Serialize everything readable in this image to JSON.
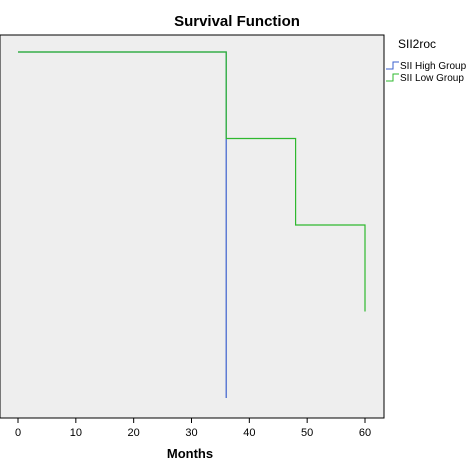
{
  "chart_data": {
    "type": "line",
    "title": "Survival Function",
    "xlabel": "Months",
    "ylabel": "",
    "xlim": [
      -1,
      62
    ],
    "ylim": [
      0,
      1.05
    ],
    "xticks": [
      0,
      10,
      20,
      30,
      40,
      50,
      60
    ],
    "grid": false,
    "legend": {
      "title": "SII2roc",
      "placement": "right"
    },
    "series": [
      {
        "name": "SII High Group",
        "color": "#3a5fcd",
        "x": [
          0,
          36,
          36
        ],
        "y": [
          1.0,
          1.0,
          0.0
        ]
      },
      {
        "name": "SII Low Group",
        "color": "#2eb82e",
        "x": [
          0,
          36,
          36,
          48,
          48,
          60,
          60
        ],
        "y": [
          1.0,
          1.0,
          0.75,
          0.75,
          0.5,
          0.5,
          0.25
        ]
      }
    ],
    "background": "#eeeeee"
  }
}
